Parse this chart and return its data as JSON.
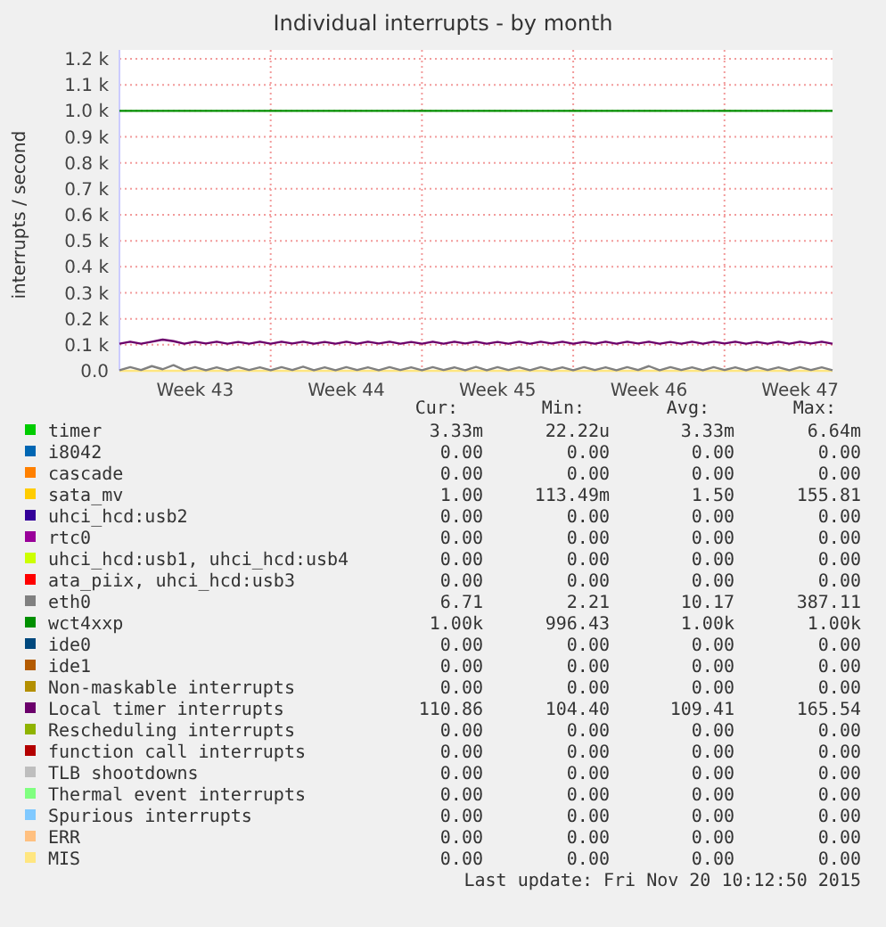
{
  "chart_data": {
    "type": "line",
    "title": "Individual interrupts - by month",
    "ylabel": "interrupts / second",
    "categories": [
      null,
      null,
      null,
      null,
      null,
      null,
      null,
      "Week 43",
      null,
      null,
      null,
      null,
      null,
      null,
      null,
      null,
      null,
      null,
      null,
      null,
      null,
      "Week 44",
      null,
      null,
      null,
      null,
      null,
      null,
      null,
      null,
      null,
      null,
      null,
      null,
      null,
      "Week 45",
      null,
      null,
      null,
      null,
      null,
      null,
      null,
      null,
      null,
      null,
      null,
      null,
      null,
      "Week 46",
      null,
      null,
      null,
      null,
      null,
      null,
      null,
      null,
      null,
      null,
      null,
      null,
      null,
      "Week 47",
      null,
      null,
      null
    ],
    "ylim": [
      0,
      1200
    ],
    "yticks": [
      {
        "value": 0,
        "label": "0.0"
      },
      {
        "value": 100,
        "label": "0.1 k"
      },
      {
        "value": 200,
        "label": "0.2 k"
      },
      {
        "value": 300,
        "label": "0.3 k"
      },
      {
        "value": 400,
        "label": "0.4 k"
      },
      {
        "value": 500,
        "label": "0.5 k"
      },
      {
        "value": 600,
        "label": "0.6 k"
      },
      {
        "value": 700,
        "label": "0.7 k"
      },
      {
        "value": 800,
        "label": "0.8 k"
      },
      {
        "value": 900,
        "label": "0.9 k"
      },
      {
        "value": 1000,
        "label": "1.0 k"
      },
      {
        "value": 1100,
        "label": "1.1 k"
      },
      {
        "value": 1200,
        "label": "1.2 k"
      }
    ],
    "grid": true,
    "legend": "bottom",
    "marker": "none",
    "line_style": "solid",
    "series": [
      {
        "name": "timer",
        "color": "#00cc00",
        "values": [
          null,
          null,
          null,
          null,
          null,
          null,
          null,
          null,
          null,
          null,
          null,
          null,
          null,
          null,
          null,
          null,
          null,
          null,
          null,
          null,
          null,
          null,
          null,
          null,
          null,
          null,
          null,
          null,
          null,
          null,
          null,
          null,
          null,
          null,
          null,
          null,
          null,
          null,
          null,
          null,
          null,
          null,
          null,
          null,
          null,
          null,
          null,
          null,
          null,
          null,
          null,
          null,
          null,
          null,
          null,
          null,
          null,
          null,
          null,
          null,
          null,
          null,
          null,
          null,
          null,
          null,
          null
        ]
      },
      {
        "name": "i8042",
        "color": "#0066b3",
        "values": [
          null,
          null,
          null,
          null,
          null,
          null,
          null,
          null,
          null,
          null,
          null,
          null,
          null,
          null,
          null,
          null,
          null,
          null,
          null,
          null,
          null,
          null,
          null,
          null,
          null,
          null,
          null,
          null,
          null,
          null,
          null,
          null,
          null,
          null,
          null,
          null,
          null,
          null,
          null,
          null,
          null,
          null,
          null,
          null,
          null,
          null,
          null,
          null,
          null,
          null,
          null,
          null,
          null,
          null,
          null,
          null,
          null,
          null,
          null,
          null,
          null,
          null,
          null,
          null,
          null,
          null,
          null
        ]
      },
      {
        "name": "cascade",
        "color": "#ff8000",
        "values": [
          null,
          null,
          null,
          null,
          null,
          null,
          null,
          null,
          null,
          null,
          null,
          null,
          null,
          null,
          null,
          null,
          null,
          null,
          null,
          null,
          null,
          null,
          null,
          null,
          null,
          null,
          null,
          null,
          null,
          null,
          null,
          null,
          null,
          null,
          null,
          null,
          null,
          null,
          null,
          null,
          null,
          null,
          null,
          null,
          null,
          null,
          null,
          null,
          null,
          null,
          null,
          null,
          null,
          null,
          null,
          null,
          null,
          null,
          null,
          null,
          null,
          null,
          null,
          null,
          null,
          null,
          null
        ]
      },
      {
        "name": "sata_mv",
        "color": "#ffcc00",
        "values": [
          null,
          null,
          null,
          null,
          null,
          null,
          null,
          null,
          null,
          null,
          null,
          null,
          null,
          null,
          null,
          null,
          null,
          null,
          null,
          null,
          null,
          null,
          null,
          null,
          null,
          null,
          null,
          null,
          null,
          null,
          null,
          null,
          null,
          null,
          null,
          null,
          null,
          null,
          null,
          null,
          null,
          null,
          null,
          null,
          null,
          null,
          null,
          null,
          null,
          null,
          null,
          null,
          null,
          null,
          null,
          null,
          null,
          null,
          null,
          null,
          null,
          null,
          null,
          null,
          null,
          null,
          null
        ]
      },
      {
        "name": "uhci_hcd:usb2",
        "color": "#330099",
        "values": [
          null,
          null,
          null,
          null,
          null,
          null,
          null,
          null,
          null,
          null,
          null,
          null,
          null,
          null,
          null,
          null,
          null,
          null,
          null,
          null,
          null,
          null,
          null,
          null,
          null,
          null,
          null,
          null,
          null,
          null,
          null,
          null,
          null,
          null,
          null,
          null,
          null,
          null,
          null,
          null,
          null,
          null,
          null,
          null,
          null,
          null,
          null,
          null,
          null,
          null,
          null,
          null,
          null,
          null,
          null,
          null,
          null,
          null,
          null,
          null,
          null,
          null,
          null,
          null,
          null,
          null,
          null
        ]
      },
      {
        "name": "rtc0",
        "color": "#990099",
        "values": [
          null,
          null,
          null,
          null,
          null,
          null,
          null,
          null,
          null,
          null,
          null,
          null,
          null,
          null,
          null,
          null,
          null,
          null,
          null,
          null,
          null,
          null,
          null,
          null,
          null,
          null,
          null,
          null,
          null,
          null,
          null,
          null,
          null,
          null,
          null,
          null,
          null,
          null,
          null,
          null,
          null,
          null,
          null,
          null,
          null,
          null,
          null,
          null,
          null,
          null,
          null,
          null,
          null,
          null,
          null,
          null,
          null,
          null,
          null,
          null,
          null,
          null,
          null,
          null,
          null,
          null,
          null
        ]
      },
      {
        "name": "uhci_hcd:usb1, uhci_hcd:usb4",
        "color": "#ccff00",
        "values": [
          null,
          null,
          null,
          null,
          null,
          null,
          null,
          null,
          null,
          null,
          null,
          null,
          null,
          null,
          null,
          null,
          null,
          null,
          null,
          null,
          null,
          null,
          null,
          null,
          null,
          null,
          null,
          null,
          null,
          null,
          null,
          null,
          null,
          null,
          null,
          null,
          null,
          null,
          null,
          null,
          null,
          null,
          null,
          null,
          null,
          null,
          null,
          null,
          null,
          null,
          null,
          null,
          null,
          null,
          null,
          null,
          null,
          null,
          null,
          null,
          null,
          null,
          null,
          null,
          null,
          null,
          null
        ]
      },
      {
        "name": "ata_piix, uhci_hcd:usb3",
        "color": "#ff0000",
        "values": [
          null,
          null,
          null,
          null,
          null,
          null,
          null,
          null,
          null,
          null,
          null,
          null,
          null,
          null,
          null,
          null,
          null,
          null,
          null,
          null,
          null,
          null,
          null,
          null,
          null,
          null,
          null,
          null,
          null,
          null,
          null,
          null,
          null,
          null,
          null,
          null,
          null,
          null,
          null,
          null,
          null,
          null,
          null,
          null,
          null,
          null,
          null,
          null,
          null,
          null,
          null,
          null,
          null,
          null,
          null,
          null,
          null,
          null,
          null,
          null,
          null,
          null,
          null,
          null,
          null,
          null,
          null
        ]
      },
      {
        "name": "eth0",
        "color": "#808080",
        "values": [
          2,
          14,
          3,
          18,
          6,
          22,
          3,
          14,
          2,
          13,
          2,
          14,
          3,
          13,
          2,
          14,
          3,
          16,
          2,
          13,
          2,
          14,
          3,
          13,
          2,
          14,
          3,
          13,
          2,
          14,
          3,
          13,
          2,
          15,
          2,
          14,
          3,
          13,
          2,
          14,
          3,
          13,
          2,
          14,
          3,
          13,
          2,
          14,
          3,
          18,
          2,
          14,
          3,
          13,
          2,
          14,
          3,
          13,
          2,
          14,
          3,
          13,
          2,
          14,
          3,
          13,
          2
        ]
      },
      {
        "name": "wct4xxp",
        "color": "#008f00",
        "values": [
          1000,
          1000,
          1000,
          1000,
          1000,
          1000,
          1000,
          1000,
          1000,
          1000,
          1000,
          1000,
          1000,
          1000,
          1000,
          1000,
          1000,
          1000,
          1000,
          1000,
          1000,
          1000,
          1000,
          1000,
          1000,
          1000,
          1000,
          1000,
          1000,
          1000,
          1000,
          1000,
          1000,
          1000,
          1000,
          1000,
          1000,
          1000,
          1000,
          1000,
          1000,
          1000,
          1000,
          1000,
          1000,
          1000,
          1000,
          1000,
          1000,
          1000,
          1000,
          1000,
          1000,
          1000,
          1000,
          1000,
          1000,
          1000,
          1000,
          1000,
          1000,
          1000,
          1000,
          1000,
          1000,
          1000,
          1000
        ]
      },
      {
        "name": "ide0",
        "color": "#00487d",
        "values": [
          null,
          null,
          null,
          null,
          null,
          null,
          null,
          null,
          null,
          null,
          null,
          null,
          null,
          null,
          null,
          null,
          null,
          null,
          null,
          null,
          null,
          null,
          null,
          null,
          null,
          null,
          null,
          null,
          null,
          null,
          null,
          null,
          null,
          null,
          null,
          null,
          null,
          null,
          null,
          null,
          null,
          null,
          null,
          null,
          null,
          null,
          null,
          null,
          null,
          null,
          null,
          null,
          null,
          null,
          null,
          null,
          null,
          null,
          null,
          null,
          null,
          null,
          null,
          null,
          null,
          null,
          null
        ]
      },
      {
        "name": "ide1",
        "color": "#b35a00",
        "values": [
          null,
          null,
          null,
          null,
          null,
          null,
          null,
          null,
          null,
          null,
          null,
          null,
          null,
          null,
          null,
          null,
          null,
          null,
          null,
          null,
          null,
          null,
          null,
          null,
          null,
          null,
          null,
          null,
          null,
          null,
          null,
          null,
          null,
          null,
          null,
          null,
          null,
          null,
          null,
          null,
          null,
          null,
          null,
          null,
          null,
          null,
          null,
          null,
          null,
          null,
          null,
          null,
          null,
          null,
          null,
          null,
          null,
          null,
          null,
          null,
          null,
          null,
          null,
          null,
          null,
          null,
          null
        ]
      },
      {
        "name": "Non-maskable interrupts",
        "color": "#b38f00",
        "values": [
          null,
          null,
          null,
          null,
          null,
          null,
          null,
          null,
          null,
          null,
          null,
          null,
          null,
          null,
          null,
          null,
          null,
          null,
          null,
          null,
          null,
          null,
          null,
          null,
          null,
          null,
          null,
          null,
          null,
          null,
          null,
          null,
          null,
          null,
          null,
          null,
          null,
          null,
          null,
          null,
          null,
          null,
          null,
          null,
          null,
          null,
          null,
          null,
          null,
          null,
          null,
          null,
          null,
          null,
          null,
          null,
          null,
          null,
          null,
          null,
          null,
          null,
          null,
          null,
          null,
          null,
          null
        ]
      },
      {
        "name": "Local timer interrupts",
        "color": "#6b006b",
        "values": [
          104,
          112,
          104,
          112,
          120,
          114,
          104,
          112,
          105,
          112,
          104,
          111,
          104,
          112,
          104,
          112,
          105,
          112,
          104,
          111,
          104,
          112,
          104,
          112,
          105,
          112,
          104,
          111,
          104,
          112,
          104,
          112,
          105,
          112,
          104,
          111,
          104,
          112,
          104,
          112,
          105,
          112,
          104,
          111,
          104,
          112,
          104,
          112,
          105,
          112,
          104,
          111,
          104,
          112,
          104,
          112,
          105,
          112,
          104,
          111,
          104,
          112,
          104,
          112,
          105,
          112,
          104
        ]
      },
      {
        "name": "Rescheduling interrupts",
        "color": "#8fb300",
        "values": [
          null,
          null,
          null,
          null,
          null,
          null,
          null,
          null,
          null,
          null,
          null,
          null,
          null,
          null,
          null,
          null,
          null,
          null,
          null,
          null,
          null,
          null,
          null,
          null,
          null,
          null,
          null,
          null,
          null,
          null,
          null,
          null,
          null,
          null,
          null,
          null,
          null,
          null,
          null,
          null,
          null,
          null,
          null,
          null,
          null,
          null,
          null,
          null,
          null,
          null,
          null,
          null,
          null,
          null,
          null,
          null,
          null,
          null,
          null,
          null,
          null,
          null,
          null,
          null,
          null,
          null,
          null
        ]
      },
      {
        "name": "function call interrupts",
        "color": "#b30000",
        "values": [
          null,
          null,
          null,
          null,
          null,
          null,
          null,
          null,
          null,
          null,
          null,
          null,
          null,
          null,
          null,
          null,
          null,
          null,
          null,
          null,
          null,
          null,
          null,
          null,
          null,
          null,
          null,
          null,
          null,
          null,
          null,
          null,
          null,
          null,
          null,
          null,
          null,
          null,
          null,
          null,
          null,
          null,
          null,
          null,
          null,
          null,
          null,
          null,
          null,
          null,
          null,
          null,
          null,
          null,
          null,
          null,
          null,
          null,
          null,
          null,
          null,
          null,
          null,
          null,
          null,
          null,
          null
        ]
      },
      {
        "name": "TLB shootdowns",
        "color": "#bebebe",
        "values": [
          null,
          null,
          null,
          null,
          null,
          null,
          null,
          null,
          null,
          null,
          null,
          null,
          null,
          null,
          null,
          null,
          null,
          null,
          null,
          null,
          null,
          null,
          null,
          null,
          null,
          null,
          null,
          null,
          null,
          null,
          null,
          null,
          null,
          null,
          null,
          null,
          null,
          null,
          null,
          null,
          null,
          null,
          null,
          null,
          null,
          null,
          null,
          null,
          null,
          null,
          null,
          null,
          null,
          null,
          null,
          null,
          null,
          null,
          null,
          null,
          null,
          null,
          null,
          null,
          null,
          null,
          null
        ]
      },
      {
        "name": "Thermal event interrupts",
        "color": "#80ff80",
        "values": [
          null,
          null,
          null,
          null,
          null,
          null,
          null,
          null,
          null,
          null,
          null,
          null,
          null,
          null,
          null,
          null,
          null,
          null,
          null,
          null,
          null,
          null,
          null,
          null,
          null,
          null,
          null,
          null,
          null,
          null,
          null,
          null,
          null,
          null,
          null,
          null,
          null,
          null,
          null,
          null,
          null,
          null,
          null,
          null,
          null,
          null,
          null,
          null,
          null,
          null,
          null,
          null,
          null,
          null,
          null,
          null,
          null,
          null,
          null,
          null,
          null,
          null,
          null,
          null,
          null,
          null,
          null
        ]
      },
      {
        "name": "Spurious interrupts",
        "color": "#80c9ff",
        "values": [
          null,
          null,
          null,
          null,
          null,
          null,
          null,
          null,
          null,
          null,
          null,
          null,
          null,
          null,
          null,
          null,
          null,
          null,
          null,
          null,
          null,
          null,
          null,
          null,
          null,
          null,
          null,
          null,
          null,
          null,
          null,
          null,
          null,
          null,
          null,
          null,
          null,
          null,
          null,
          null,
          null,
          null,
          null,
          null,
          null,
          null,
          null,
          null,
          null,
          null,
          null,
          null,
          null,
          null,
          null,
          null,
          null,
          null,
          null,
          null,
          null,
          null,
          null,
          null,
          null,
          null,
          null
        ]
      },
      {
        "name": "ERR",
        "color": "#ffc080",
        "values": [
          null,
          null,
          null,
          null,
          null,
          null,
          null,
          null,
          null,
          null,
          null,
          null,
          null,
          null,
          null,
          null,
          null,
          null,
          null,
          null,
          null,
          null,
          null,
          null,
          null,
          null,
          null,
          null,
          null,
          null,
          null,
          null,
          null,
          null,
          null,
          null,
          null,
          null,
          null,
          null,
          null,
          null,
          null,
          null,
          null,
          null,
          null,
          null,
          null,
          null,
          null,
          null,
          null,
          null,
          null,
          null,
          null,
          null,
          null,
          null,
          null,
          null,
          null,
          null,
          null,
          null,
          null
        ]
      },
      {
        "name": "MIS",
        "color": "#ffe680",
        "values": [
          0,
          0,
          0,
          0,
          0,
          0,
          0,
          0,
          0,
          0,
          0,
          0,
          0,
          0,
          0,
          0,
          0,
          0,
          0,
          0,
          0,
          0,
          0,
          0,
          0,
          0,
          0,
          0,
          0,
          0,
          0,
          0,
          0,
          0,
          0,
          0,
          0,
          0,
          0,
          0,
          0,
          0,
          0,
          0,
          0,
          0,
          0,
          0,
          0,
          0,
          0,
          0,
          0,
          0,
          0,
          0,
          0,
          0,
          0,
          0,
          0,
          0,
          0,
          0,
          0,
          0,
          0
        ]
      }
    ],
    "annotations": [
      "Cur:",
      "Min:",
      "Avg:",
      "Max:",
      "3.33m",
      "22.22u",
      "3.33m",
      "6.64m",
      "0.00",
      "0.00",
      "0.00",
      "0.00",
      "0.00",
      "0.00",
      "0.00",
      "0.00",
      "1.00",
      "113.49m",
      "1.50",
      "155.81",
      "0.00",
      "0.00",
      "0.00",
      "0.00",
      "0.00",
      "0.00",
      "0.00",
      "0.00",
      "0.00",
      "0.00",
      "0.00",
      "0.00",
      "0.00",
      "0.00",
      "0.00",
      "0.00",
      "6.71",
      "2.21",
      "10.17",
      "387.11",
      "1.00k",
      "996.43",
      "1.00k",
      "1.00k",
      "0.00",
      "0.00",
      "0.00",
      "0.00",
      "0.00",
      "0.00",
      "0.00",
      "0.00",
      "0.00",
      "0.00",
      "0.00",
      "0.00",
      "110.86",
      "104.40",
      "109.41",
      "165.54",
      "0.00",
      "0.00",
      "0.00",
      "0.00",
      "0.00",
      "0.00",
      "0.00",
      "0.00",
      "0.00",
      "0.00",
      "0.00",
      "0.00",
      "0.00",
      "0.00",
      "0.00",
      "0.00",
      "0.00",
      "0.00",
      "0.00",
      "0.00",
      "0.00",
      "0.00",
      "0.00",
      "0.00",
      "0.00",
      "0.00",
      "0.00",
      "0.00",
      "Last update: Fri Nov 20 10:12:50 2015"
    ]
  }
}
